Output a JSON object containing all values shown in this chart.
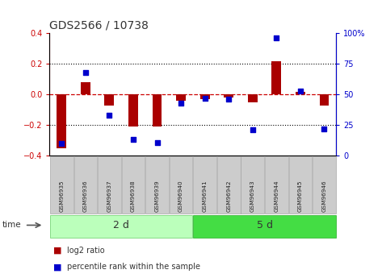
{
  "title": "GDS2566 / 10738",
  "samples": [
    "GSM96935",
    "GSM96936",
    "GSM96937",
    "GSM96938",
    "GSM96939",
    "GSM96940",
    "GSM96941",
    "GSM96942",
    "GSM96943",
    "GSM96944",
    "GSM96945",
    "GSM96946"
  ],
  "log2_ratio": [
    -0.35,
    0.08,
    -0.07,
    -0.21,
    -0.21,
    -0.04,
    -0.03,
    -0.02,
    -0.05,
    0.22,
    0.02,
    -0.07
  ],
  "percentile_rank": [
    10,
    68,
    33,
    13,
    11,
    43,
    47,
    46,
    21,
    96,
    53,
    22
  ],
  "ylim_left": [
    -0.4,
    0.4
  ],
  "ylim_right": [
    0,
    100
  ],
  "yticks_left": [
    -0.4,
    -0.2,
    0.0,
    0.2,
    0.4
  ],
  "yticks_right": [
    0,
    25,
    50,
    75,
    100
  ],
  "ytick_labels_right": [
    "0",
    "25",
    "50",
    "75",
    "100%"
  ],
  "group1_label": "2 d",
  "group2_label": "5 d",
  "bar_color": "#AA0000",
  "dot_color": "#0000CC",
  "group1_bg": "#BBFFBB",
  "group2_bg": "#44DD44",
  "sample_bg": "#CCCCCC",
  "sample_border": "#999999",
  "axis_left_color": "#CC0000",
  "axis_right_color": "#0000CC",
  "zero_line_color": "#CC0000",
  "grid_color": "#000000",
  "dotted_levels": [
    -0.2,
    0.2
  ],
  "legend_bar_label": "log2 ratio",
  "legend_dot_label": "percentile rank within the sample"
}
